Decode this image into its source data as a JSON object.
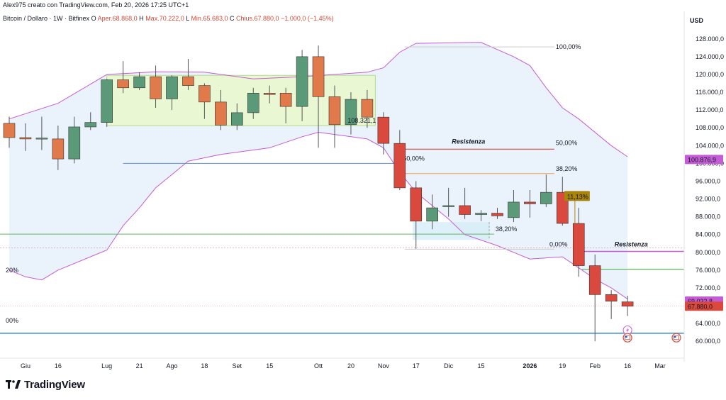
{
  "header": {
    "author_line": "Alex975 creato con TradingView.com, Feb 20, 2026 17:25 UTC+1",
    "symbol_line": "Bitcoin / Dollaro · 1W · Bitfinex",
    "ohlc": [
      {
        "label": "O",
        "value": "Aper.68.868,0"
      },
      {
        "label": "H",
        "value": "Max.70.222,0"
      },
      {
        "label": "L",
        "value": "Min.65.683,0"
      },
      {
        "label": "C",
        "value": "Chius.67.880,0"
      },
      {
        "label": "",
        "value": "−1.000,0 (−1,45%)"
      }
    ]
  },
  "currency_label": "USD",
  "colors": {
    "up": "#5b9a78",
    "down": "#d9493d",
    "orange": "#e07a4a",
    "bollinger": "#c45cd6",
    "band_fill": "#eaf3fb",
    "range_box": "#e9f7d2",
    "resistance": "#d9493d",
    "fib_blue": "#5b8fd6",
    "fib_green": "#5fb85f",
    "fib_orange": "#f0a050",
    "support": "#5b9bd5"
  },
  "chart_data": {
    "type": "candlestick",
    "title": "Bitcoin / Dollaro · 1W · Bitfinex",
    "ylabel": "USD",
    "ylim": [
      57000,
      131000
    ],
    "y_ticks": [
      60000,
      64000,
      68000,
      72000,
      76000,
      80000,
      84000,
      88000,
      92000,
      96000,
      100000,
      104000,
      108000,
      112000,
      116000,
      120000,
      124000,
      128000
    ],
    "y_tick_labels": [
      "60.000,0",
      "64.000,0",
      "68.000,0",
      "72.000,0",
      "76.000,0",
      "80.000,0",
      "84.000,0",
      "88.000,0",
      "92.000,0",
      "96.000,0",
      "100.000,0",
      "104.000,0",
      "108.000,0",
      "112.000,0",
      "116.000,0",
      "120.000,0",
      "124.000,0",
      "128.000,0"
    ],
    "x_labels": [
      {
        "label": "Giu",
        "week": 1,
        "bold": false
      },
      {
        "label": "16",
        "week": 3,
        "bold": false
      },
      {
        "label": "Lug",
        "week": 6,
        "bold": false
      },
      {
        "label": "21",
        "week": 8,
        "bold": false
      },
      {
        "label": "Ago",
        "week": 10,
        "bold": false
      },
      {
        "label": "18",
        "week": 12,
        "bold": false
      },
      {
        "label": "Set",
        "week": 14,
        "bold": false
      },
      {
        "label": "15",
        "week": 16,
        "bold": false
      },
      {
        "label": "Ott",
        "week": 19,
        "bold": false
      },
      {
        "label": "20",
        "week": 21,
        "bold": false
      },
      {
        "label": "Nov",
        "week": 23,
        "bold": false
      },
      {
        "label": "17",
        "week": 25,
        "bold": false
      },
      {
        "label": "Dic",
        "week": 27,
        "bold": false
      },
      {
        "label": "15",
        "week": 29,
        "bold": false
      },
      {
        "label": "2026",
        "week": 32,
        "bold": true
      },
      {
        "label": "19",
        "week": 34,
        "bold": false
      },
      {
        "label": "Feb",
        "week": 36,
        "bold": false
      },
      {
        "label": "16",
        "week": 38,
        "bold": false
      },
      {
        "label": "Mar",
        "week": 40,
        "bold": false
      }
    ],
    "candles": [
      {
        "o": 109000,
        "h": 110500,
        "l": 103500,
        "c": 105800
      },
      {
        "o": 105800,
        "h": 109000,
        "l": 102800,
        "c": 105500
      },
      {
        "o": 105500,
        "h": 110500,
        "l": 103000,
        "c": 105700
      },
      {
        "o": 105500,
        "h": 108500,
        "l": 98500,
        "c": 101000
      },
      {
        "o": 101000,
        "h": 110500,
        "l": 100000,
        "c": 108200
      },
      {
        "o": 108200,
        "h": 111500,
        "l": 107500,
        "c": 109200
      },
      {
        "o": 109200,
        "h": 119000,
        "l": 108200,
        "c": 118800
      },
      {
        "o": 118800,
        "h": 123000,
        "l": 115800,
        "c": 117000
      },
      {
        "o": 117000,
        "h": 120500,
        "l": 116500,
        "c": 119500
      },
      {
        "o": 119500,
        "h": 122000,
        "l": 112500,
        "c": 114500
      },
      {
        "o": 114500,
        "h": 119800,
        "l": 112000,
        "c": 119500
      },
      {
        "o": 119500,
        "h": 123500,
        "l": 116500,
        "c": 117500
      },
      {
        "o": 117500,
        "h": 118000,
        "l": 110000,
        "c": 113800
      },
      {
        "o": 113800,
        "h": 116500,
        "l": 107500,
        "c": 108600
      },
      {
        "o": 108600,
        "h": 113500,
        "l": 107500,
        "c": 111400
      },
      {
        "o": 111400,
        "h": 117000,
        "l": 110000,
        "c": 115800
      },
      {
        "o": 115800,
        "h": 117500,
        "l": 113500,
        "c": 115500
      },
      {
        "o": 115800,
        "h": 117000,
        "l": 109000,
        "c": 112800
      },
      {
        "o": 112800,
        "h": 125500,
        "l": 109500,
        "c": 124000
      },
      {
        "o": 124000,
        "h": 126500,
        "l": 103500,
        "c": 115000
      },
      {
        "o": 115000,
        "h": 117500,
        "l": 103500,
        "c": 108700
      },
      {
        "o": 108700,
        "h": 116000,
        "l": 106500,
        "c": 114400
      },
      {
        "o": 114400,
        "h": 116500,
        "l": 108000,
        "c": 110400
      },
      {
        "o": 110400,
        "h": 111500,
        "l": 102000,
        "c": 104500
      },
      {
        "o": 104500,
        "h": 107500,
        "l": 94000,
        "c": 94500
      },
      {
        "o": 94500,
        "h": 96000,
        "l": 80800,
        "c": 87000
      },
      {
        "o": 87000,
        "h": 93000,
        "l": 85200,
        "c": 90000
      },
      {
        "o": 90500,
        "h": 94500,
        "l": 88000,
        "c": 90500
      },
      {
        "o": 90500,
        "h": 94500,
        "l": 87500,
        "c": 88500
      },
      {
        "o": 88500,
        "h": 89500,
        "l": 87000,
        "c": 88800
      },
      {
        "o": 88800,
        "h": 90000,
        "l": 87500,
        "c": 88200
      },
      {
        "o": 87800,
        "h": 94000,
        "l": 86800,
        "c": 91300
      },
      {
        "o": 91300,
        "h": 94000,
        "l": 87800,
        "c": 90900
      },
      {
        "o": 90900,
        "h": 97500,
        "l": 90200,
        "c": 93500
      },
      {
        "o": 93500,
        "h": 97000,
        "l": 86000,
        "c": 86500
      },
      {
        "o": 86500,
        "h": 90000,
        "l": 74500,
        "c": 77000
      },
      {
        "o": 77000,
        "h": 79500,
        "l": 60000,
        "c": 70500
      },
      {
        "o": 70500,
        "h": 71500,
        "l": 65000,
        "c": 69000
      },
      {
        "o": 68868,
        "h": 70222,
        "l": 65683,
        "c": 67880
      }
    ],
    "bollinger_upper": [
      [
        0,
        110000
      ],
      [
        3,
        113500
      ],
      [
        6,
        120000
      ],
      [
        9,
        120600
      ],
      [
        12,
        120500
      ],
      [
        15,
        119000
      ],
      [
        18,
        119500
      ],
      [
        22,
        120500
      ],
      [
        23,
        121500
      ],
      [
        24,
        125000
      ],
      [
        25,
        127000
      ],
      [
        29,
        127200
      ],
      [
        31,
        124000
      ],
      [
        32,
        122000
      ],
      [
        33,
        117000
      ],
      [
        34,
        112500
      ],
      [
        35,
        110000
      ],
      [
        37,
        104000
      ],
      [
        38,
        101500
      ]
    ],
    "bollinger_lower": [
      [
        0,
        76000
      ],
      [
        1,
        74500
      ],
      [
        2,
        73800
      ],
      [
        3,
        76000
      ],
      [
        6,
        80500
      ],
      [
        7,
        86000
      ],
      [
        8,
        90000
      ],
      [
        9,
        94500
      ],
      [
        10,
        97500
      ],
      [
        11,
        100500
      ],
      [
        13,
        102000
      ],
      [
        16,
        103500
      ],
      [
        18,
        106000
      ],
      [
        19,
        107000
      ],
      [
        20,
        106500
      ],
      [
        22,
        105500
      ],
      [
        23,
        103500
      ],
      [
        24,
        98000
      ],
      [
        25,
        93500
      ],
      [
        27,
        87500
      ],
      [
        28,
        84000
      ],
      [
        30,
        81500
      ],
      [
        31,
        80000
      ],
      [
        32,
        78500
      ],
      [
        34,
        79000
      ],
      [
        35,
        76500
      ],
      [
        36,
        74000
      ],
      [
        37,
        72000
      ],
      [
        38,
        69500
      ]
    ],
    "range_box": {
      "x_from": 6,
      "x_to": 22.5,
      "y_from": 108500,
      "y_to": 119800
    },
    "range_box_label": "108.321,1",
    "fib_top_label": "100,00%",
    "fib_top_value": 126200,
    "fib_top_x_from": 24.3,
    "fib_top_x_to": 33.5,
    "resistance_label": "Resistenza",
    "resistance_value": 103200,
    "resistance_x_from": 24.3,
    "resistance_x_to": 33.5,
    "resistance_pct": "50,00%",
    "fib_50_left_label": "50,00%",
    "fib_50_line": {
      "value": 100000,
      "x_from": 7,
      "x_to": 24.3
    },
    "fib_3820_orange": {
      "value": 97700,
      "x_from": 24.3,
      "x_to": 33.5,
      "label": "38,20%"
    },
    "green_line": {
      "value": 84100,
      "x_from": -1,
      "x_to": 29.8,
      "label": "38,20%"
    },
    "zero_label": "0,00%",
    "zero_value": 80700,
    "resistance2_label": "Resistenza",
    "resistance2_value": 80200,
    "green_line2": {
      "value": 76200,
      "label": ""
    },
    "left_pct_20": "20%",
    "left_pct_00": "00%",
    "support_blue": 61800,
    "pct_tag": "11,13%",
    "pct_tag_value": 92500,
    "price_tags": [
      {
        "label": "100.876,9",
        "value": 100876.9,
        "color": "#c45cd6"
      },
      {
        "label": "69.032,8",
        "value": 69032.8,
        "color": "#c45cd6"
      },
      {
        "label": "67.880,0",
        "value": 67880,
        "color": "#d9493d"
      }
    ],
    "dashed_line": 67880,
    "dashed_pink_line": 81000
  },
  "branding": {
    "logo_text": "TradingView"
  }
}
